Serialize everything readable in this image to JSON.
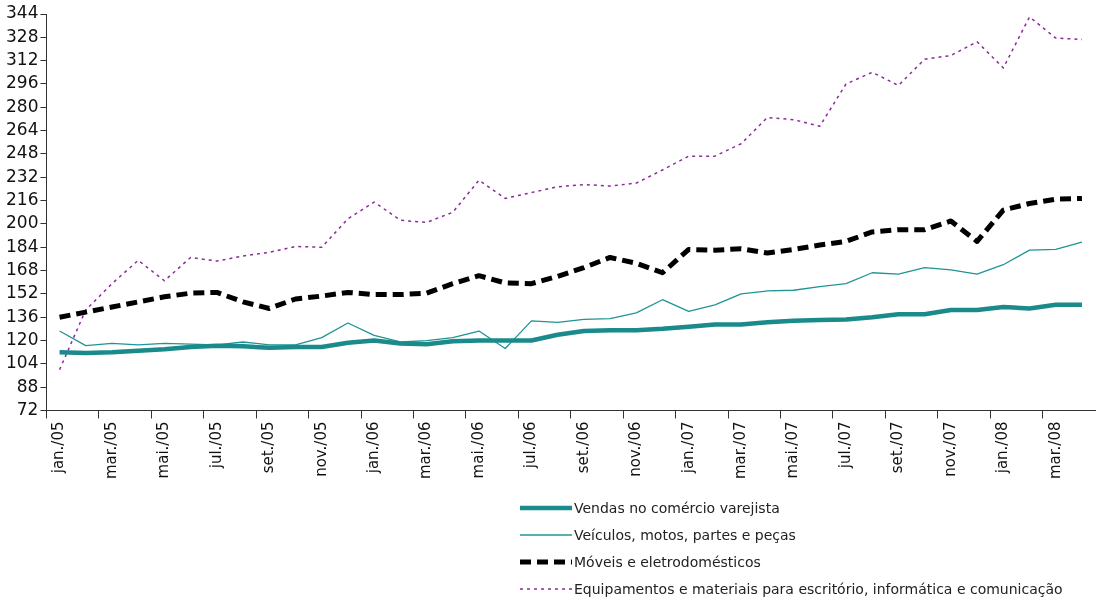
{
  "chart_data": {
    "type": "line",
    "categories": [
      "jan./05",
      null,
      "mar./05",
      null,
      "mai./05",
      null,
      "jul./05",
      null,
      "set./05",
      null,
      "nov./05",
      null,
      "jan./06",
      null,
      "mar./06",
      null,
      "mai./06",
      null,
      "jul./06",
      null,
      "set./06",
      null,
      "nov./06",
      null,
      "jan./07",
      null,
      "mar./07",
      null,
      "mai./07",
      null,
      "jul./07",
      null,
      "set./07",
      null,
      "nov./07",
      null,
      "jan./08",
      null,
      "mar./08",
      null
    ],
    "ylim": [
      72,
      344
    ],
    "yticks": [
      72,
      88,
      104,
      120,
      136,
      152,
      168,
      184,
      200,
      216,
      232,
      248,
      264,
      280,
      296,
      312,
      328,
      344
    ],
    "grid": false,
    "legend": "bottom",
    "marker": "none",
    "series": [
      {
        "name": "Vendas no comércio varejista",
        "color": "#1a8a8a",
        "line_style": "solid",
        "values": [
          112,
          111.5,
          112,
          113,
          114,
          115.5,
          116.5,
          116,
          115,
          115.5,
          115.5,
          118.5,
          120,
          118,
          117.5,
          119.5,
          120,
          120,
          120,
          124,
          126.5,
          127,
          127,
          128,
          129.5,
          131,
          131,
          132.5,
          133.5,
          134,
          134.5,
          136,
          138,
          138,
          141,
          141,
          143,
          142,
          144.5,
          144.5
        ]
      },
      {
        "name": "Veículos, motos, partes e peças",
        "color": "#1f9494",
        "line_style": "solid",
        "values": [
          126.5,
          116.5,
          118,
          117,
          118,
          117.5,
          117,
          119,
          117,
          117,
          122,
          132,
          123.5,
          119,
          120,
          122,
          126.5,
          114.5,
          133.5,
          132.5,
          134.5,
          135,
          139,
          148,
          140,
          144.5,
          152,
          154,
          154.5,
          157,
          159,
          166.5,
          165.5,
          170,
          168.5,
          165.5,
          172,
          182,
          182.5,
          187.5
        ]
      },
      {
        "name": "Móveis e eletrodomésticos",
        "color": "#000000",
        "line_style": "dashed",
        "values": [
          136,
          139.5,
          143,
          146.5,
          150,
          152.5,
          153,
          146.5,
          142,
          148.5,
          150.5,
          153,
          151.5,
          151.5,
          152.5,
          159,
          164.5,
          159.5,
          159,
          164,
          170,
          177,
          173,
          166.5,
          182.5,
          182,
          183,
          180,
          182.5,
          185.5,
          188,
          194.5,
          196,
          196,
          202,
          188,
          209.5,
          214,
          217,
          217.5
        ]
      },
      {
        "name": "Equipamentos e materiais para escritório, informática e comunicação",
        "color": "#8b2a9b",
        "line_style": "dotted",
        "values": [
          100,
          141,
          159,
          175,
          161,
          177,
          174.5,
          178,
          180.5,
          184.5,
          184,
          203.5,
          215,
          202.5,
          201,
          208,
          230,
          217.5,
          221.5,
          225.5,
          227,
          226,
          228,
          237,
          246.5,
          246.5,
          255,
          273,
          271.5,
          267,
          296,
          304,
          295,
          313,
          315.5,
          325,
          307,
          342,
          327.5,
          326.5
        ]
      }
    ]
  }
}
